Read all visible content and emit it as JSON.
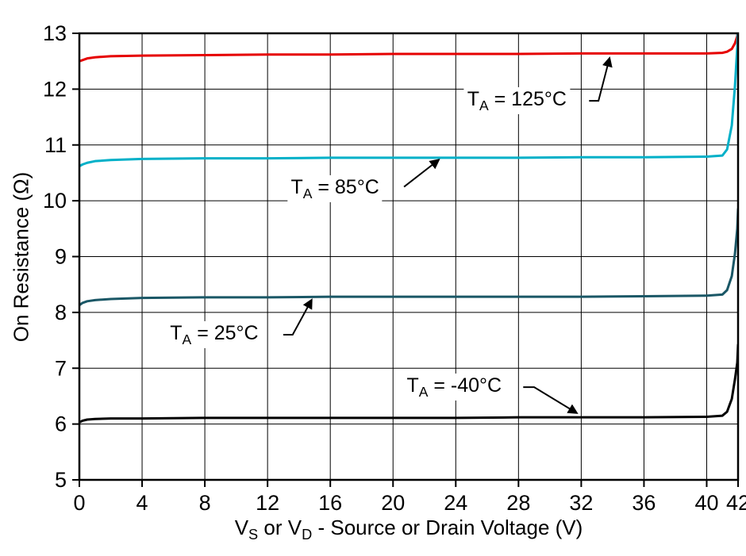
{
  "chart_data": {
    "type": "line",
    "title": "",
    "ylabel": "On Resistance (Ω)",
    "xlabel_parts": {
      "p1": "V",
      "s1": "S",
      "p2": " or V",
      "s2": "D",
      "p3": " - Source or Drain Voltage (V)"
    },
    "xlim": [
      0,
      42
    ],
    "ylim": [
      5,
      13
    ],
    "xticks": [
      0,
      4,
      8,
      12,
      16,
      20,
      24,
      28,
      32,
      36,
      40,
      42
    ],
    "yticks": [
      5,
      6,
      7,
      8,
      9,
      10,
      11,
      12,
      13
    ],
    "grid": true,
    "legend_position": "none",
    "axis_color": "#000000",
    "x": [
      0,
      0.2,
      0.5,
      1,
      2,
      4,
      8,
      12,
      16,
      20,
      24,
      28,
      32,
      36,
      40,
      41,
      41.3,
      41.6,
      41.8,
      41.95,
      42
    ],
    "series": [
      {
        "name": "TA = 125°C",
        "color": "#e60000",
        "y": [
          12.5,
          12.52,
          12.55,
          12.57,
          12.59,
          12.6,
          12.61,
          12.62,
          12.62,
          12.63,
          12.63,
          12.63,
          12.64,
          12.64,
          12.64,
          12.65,
          12.67,
          12.72,
          12.82,
          12.95,
          13.1
        ]
      },
      {
        "name": "TA = 85°C",
        "color": "#00b0c8",
        "y": [
          10.62,
          10.65,
          10.68,
          10.71,
          10.73,
          10.75,
          10.76,
          10.76,
          10.77,
          10.77,
          10.77,
          10.77,
          10.78,
          10.78,
          10.79,
          10.81,
          10.92,
          11.35,
          12.05,
          12.75,
          13.3
        ]
      },
      {
        "name": "TA = 25°C",
        "color": "#1a5766",
        "y": [
          8.13,
          8.17,
          8.2,
          8.22,
          8.24,
          8.26,
          8.27,
          8.27,
          8.28,
          8.28,
          8.28,
          8.28,
          8.28,
          8.29,
          8.3,
          8.32,
          8.4,
          8.65,
          9.05,
          9.5,
          9.85
        ]
      },
      {
        "name": "TA = -40°C",
        "color": "#000000",
        "y": [
          6.03,
          6.06,
          6.08,
          6.09,
          6.1,
          6.1,
          6.11,
          6.11,
          6.11,
          6.11,
          6.11,
          6.12,
          6.12,
          6.12,
          6.13,
          6.15,
          6.22,
          6.45,
          6.8,
          7.1,
          7.42
        ]
      }
    ],
    "annotations": [
      {
        "pre": "T",
        "sub": "A",
        "post": " = 125°C",
        "label_x": 27.9,
        "label_y": 11.79,
        "arrow": [
          [
            32.5,
            11.79
          ],
          [
            33.1,
            11.79
          ],
          [
            33.8,
            12.55
          ]
        ]
      },
      {
        "pre": "T",
        "sub": "A",
        "post": " = 85°C",
        "label_x": 16.3,
        "label_y": 10.21,
        "arrow": [
          [
            20.7,
            10.25
          ],
          [
            22.9,
            10.73
          ]
        ]
      },
      {
        "pre": "T",
        "sub": "A",
        "post": " = 25°C",
        "label_x": 8.6,
        "label_y": 7.6,
        "arrow": [
          [
            13.0,
            7.6
          ],
          [
            13.6,
            7.6
          ],
          [
            14.8,
            8.22
          ]
        ]
      },
      {
        "pre": "T",
        "sub": "A",
        "post": " = -40°C",
        "label_x": 23.9,
        "label_y": 6.66,
        "arrow": [
          [
            28.3,
            6.66
          ],
          [
            29.0,
            6.66
          ],
          [
            31.7,
            6.2
          ]
        ]
      }
    ]
  }
}
